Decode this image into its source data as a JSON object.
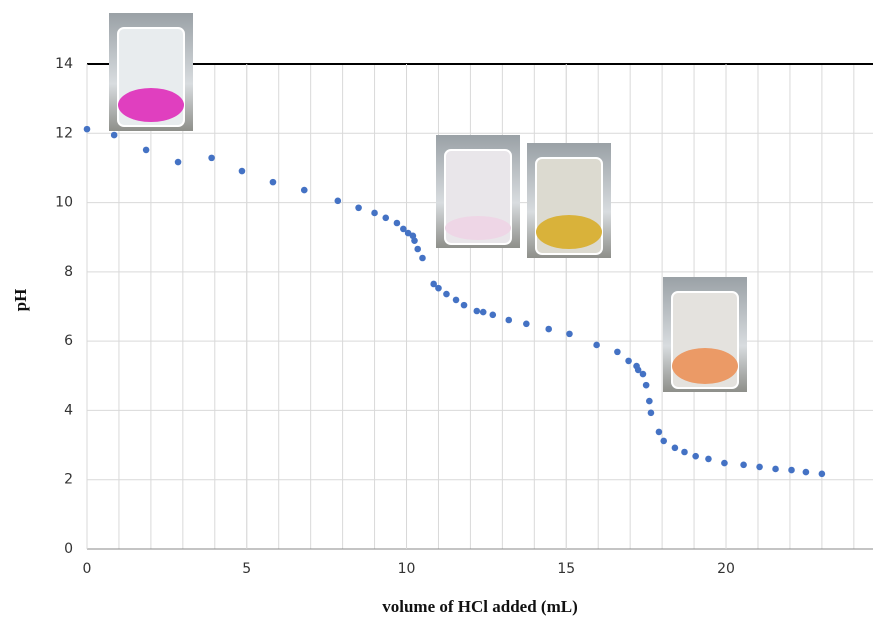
{
  "chart_data": {
    "type": "scatter",
    "x_label": "volume of HCl added (mL)",
    "y_label": "pH",
    "color": "#4472c4",
    "xlim": [
      0,
      24.6
    ],
    "ylim": [
      0,
      14
    ],
    "xticks": [
      0,
      5,
      10,
      15,
      20
    ],
    "yticks": [
      0,
      2,
      4,
      6,
      8,
      10,
      12,
      14
    ],
    "x_grid": [
      1,
      2,
      3,
      4,
      5,
      6,
      7,
      8,
      9,
      10,
      11,
      12,
      13,
      14,
      15,
      16,
      17,
      18,
      19,
      20,
      21,
      22,
      23,
      24
    ],
    "grid": true,
    "x": [
      0,
      0.85,
      1.85,
      2.85,
      3.9,
      4.85,
      5.82,
      6.8,
      7.85,
      8.5,
      9.0,
      9.35,
      9.7,
      9.9,
      10.05,
      10.2,
      10.25,
      10.35,
      10.5,
      10.85,
      11.0,
      11.25,
      11.55,
      11.8,
      12.2,
      12.4,
      12.7,
      13.2,
      13.75,
      14.45,
      15.1,
      15.95,
      16.6,
      16.95,
      17.2,
      17.25,
      17.4,
      17.5,
      17.6,
      17.65,
      17.9,
      18.05,
      18.4,
      18.7,
      19.05,
      19.45,
      19.95,
      20.55,
      21.05,
      21.55,
      22.05,
      22.5,
      23.0
    ],
    "values": [
      12.12,
      11.95,
      11.52,
      11.17,
      11.29,
      10.91,
      10.59,
      10.36,
      10.05,
      9.85,
      9.7,
      9.56,
      9.41,
      9.24,
      9.12,
      9.04,
      8.9,
      8.66,
      8.4,
      7.65,
      7.53,
      7.36,
      7.19,
      7.04,
      6.87,
      6.84,
      6.76,
      6.61,
      6.5,
      6.35,
      6.21,
      5.89,
      5.69,
      5.43,
      5.28,
      5.17,
      5.05,
      4.73,
      4.27,
      3.93,
      3.38,
      3.12,
      2.92,
      2.8,
      2.68,
      2.6,
      2.48,
      2.43,
      2.37,
      2.31,
      2.28,
      2.22,
      2.17
    ]
  }
}
